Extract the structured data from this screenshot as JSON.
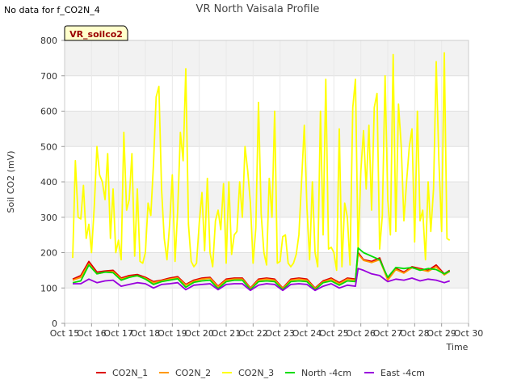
{
  "notice": "No data for f_CO2N_4",
  "chart_data": {
    "type": "line",
    "title": "VR North Vaisala Profile",
    "site_label": "VR_soilco2",
    "xlabel": "Time",
    "ylabel": "Soil CO2 (mV)",
    "ylim": [
      0,
      800
    ],
    "yticks": [
      0,
      100,
      200,
      300,
      400,
      500,
      600,
      700,
      800
    ],
    "xlim": [
      15,
      30
    ],
    "xticks": [
      15,
      16,
      17,
      18,
      19,
      20,
      21,
      22,
      23,
      24,
      25,
      26,
      27,
      28,
      29,
      30
    ],
    "xtick_labels": [
      "Oct 15",
      "Oct 16",
      "Oct 17",
      "Oct 18",
      "Oct 19",
      "Oct 20",
      "Oct 21",
      "Oct 22",
      "Oct 23",
      "Oct 24",
      "Oct 25",
      "Oct 26",
      "Oct 27",
      "Oct 28",
      "Oct 29",
      "Oct 30"
    ],
    "grid": true,
    "legend_position": "bottom",
    "series": [
      {
        "name": "CO2N_3",
        "color": "#ffff00",
        "x": [
          15.3,
          15.4,
          15.5,
          15.6,
          15.7,
          15.8,
          15.9,
          16.0,
          16.1,
          16.2,
          16.3,
          16.4,
          16.5,
          16.6,
          16.7,
          16.8,
          16.9,
          17.0,
          17.1,
          17.2,
          17.3,
          17.4,
          17.5,
          17.6,
          17.7,
          17.8,
          17.9,
          18.0,
          18.1,
          18.2,
          18.3,
          18.4,
          18.5,
          18.6,
          18.7,
          18.8,
          18.9,
          19.0,
          19.1,
          19.2,
          19.3,
          19.4,
          19.5,
          19.6,
          19.7,
          19.8,
          19.9,
          20.0,
          20.1,
          20.2,
          20.3,
          20.4,
          20.5,
          20.6,
          20.7,
          20.8,
          20.9,
          21.0,
          21.1,
          21.2,
          21.3,
          21.4,
          21.5,
          21.6,
          21.7,
          21.8,
          21.9,
          22.0,
          22.1,
          22.2,
          22.3,
          22.4,
          22.5,
          22.6,
          22.7,
          22.8,
          22.9,
          23.0,
          23.1,
          23.2,
          23.3,
          23.4,
          23.5,
          23.6,
          23.7,
          23.8,
          23.9,
          24.0,
          24.1,
          24.2,
          24.3,
          24.4,
          24.5,
          24.6,
          24.7,
          24.8,
          24.9,
          25.0,
          25.1,
          25.2,
          25.3,
          25.4,
          25.5,
          25.6,
          25.7,
          25.8,
          25.9,
          26.0,
          26.1,
          26.2,
          26.3,
          26.4,
          26.5,
          26.6,
          26.7,
          26.8,
          26.9,
          27.0,
          27.1,
          27.2,
          27.3,
          27.4,
          27.5,
          27.6,
          27.7,
          27.8,
          27.9,
          28.0,
          28.1,
          28.2,
          28.3,
          28.4,
          28.5,
          28.6,
          28.7,
          28.8,
          28.9,
          29.0,
          29.1,
          29.2,
          29.3
        ],
        "y": [
          185,
          460,
          300,
          295,
          390,
          240,
          280,
          200,
          330,
          500,
          420,
          400,
          350,
          480,
          240,
          380,
          200,
          235,
          180,
          540,
          320,
          350,
          480,
          190,
          380,
          175,
          170,
          200,
          340,
          305,
          450,
          640,
          670,
          380,
          240,
          180,
          280,
          420,
          175,
          320,
          540,
          460,
          720,
          280,
          175,
          160,
          170,
          285,
          370,
          205,
          410,
          200,
          160,
          290,
          320,
          265,
          395,
          170,
          400,
          195,
          250,
          260,
          400,
          300,
          500,
          430,
          340,
          170,
          270,
          625,
          310,
          200,
          165,
          410,
          300,
          600,
          170,
          175,
          245,
          250,
          170,
          160,
          170,
          195,
          250,
          400,
          560,
          325,
          180,
          400,
          200,
          160,
          600,
          250,
          690,
          210,
          215,
          200,
          150,
          550,
          160,
          340,
          300,
          165,
          610,
          690,
          200,
          430,
          545,
          380,
          560,
          320,
          610,
          650,
          210,
          305,
          700,
          350,
          250,
          760,
          260,
          620,
          500,
          290,
          400,
          500,
          550,
          230,
          600,
          290,
          320,
          180,
          400,
          260,
          380,
          740,
          460,
          260,
          765,
          240,
          235
        ]
      },
      {
        "name": "CO2N_1",
        "color": "#dd0000",
        "x": [
          15.3,
          15.6,
          15.9,
          16.2,
          16.5,
          16.8,
          17.1,
          17.4,
          17.7,
          18.0,
          18.3,
          18.6,
          18.9,
          19.2,
          19.5,
          19.8,
          20.1,
          20.4,
          20.7,
          21.0,
          21.3,
          21.6,
          21.9,
          22.2,
          22.5,
          22.8,
          23.1,
          23.4,
          23.7,
          24.0,
          24.3,
          24.6,
          24.9,
          25.2,
          25.5,
          25.8,
          25.9,
          26.1,
          26.4,
          26.7,
          27.0,
          27.3,
          27.6,
          27.9,
          28.2,
          28.5,
          28.8,
          29.1,
          29.3
        ],
        "y": [
          125,
          135,
          175,
          145,
          148,
          150,
          128,
          135,
          138,
          130,
          118,
          122,
          128,
          132,
          110,
          122,
          128,
          130,
          105,
          125,
          128,
          128,
          100,
          125,
          128,
          125,
          100,
          125,
          128,
          125,
          100,
          120,
          128,
          115,
          128,
          125,
          200,
          180,
          175,
          185,
          125,
          155,
          145,
          160,
          155,
          150,
          165,
          140,
          150
        ]
      },
      {
        "name": "CO2N_2",
        "color": "#ff9900",
        "x": [
          15.3,
          15.6,
          15.9,
          16.2,
          16.5,
          16.8,
          17.1,
          17.4,
          17.7,
          18.0,
          18.3,
          18.6,
          18.9,
          19.2,
          19.5,
          19.8,
          20.1,
          20.4,
          20.7,
          21.0,
          21.3,
          21.6,
          21.9,
          22.2,
          22.5,
          22.8,
          23.1,
          23.4,
          23.7,
          24.0,
          24.3,
          24.6,
          24.9,
          25.2,
          25.5,
          25.8,
          25.9,
          26.1,
          26.4,
          26.7,
          27.0,
          27.3,
          27.6,
          27.9,
          28.2,
          28.5,
          28.8,
          29.1,
          29.3
        ],
        "y": [
          122,
          130,
          168,
          140,
          145,
          146,
          125,
          132,
          134,
          127,
          115,
          120,
          125,
          129,
          108,
          119,
          125,
          127,
          103,
          122,
          125,
          125,
          98,
          122,
          125,
          122,
          98,
          122,
          125,
          122,
          98,
          117,
          125,
          112,
          125,
          122,
          196,
          178,
          172,
          180,
          122,
          152,
          142,
          157,
          152,
          147,
          160,
          137,
          147
        ]
      },
      {
        "name": "North -4cm",
        "color": "#00dd00",
        "x": [
          15.3,
          15.6,
          15.9,
          16.2,
          16.5,
          16.8,
          17.1,
          17.4,
          17.7,
          18.0,
          18.3,
          18.6,
          18.9,
          19.2,
          19.5,
          19.8,
          20.1,
          20.4,
          20.7,
          21.0,
          21.3,
          21.6,
          21.9,
          22.2,
          22.5,
          22.8,
          23.1,
          23.4,
          23.7,
          24.0,
          24.3,
          24.6,
          24.9,
          25.2,
          25.5,
          25.8,
          25.9,
          26.1,
          26.4,
          26.7,
          27.0,
          27.3,
          27.6,
          27.9,
          28.2,
          28.5,
          28.8,
          29.1,
          29.3
        ],
        "y": [
          115,
          120,
          165,
          140,
          145,
          143,
          122,
          130,
          135,
          125,
          110,
          118,
          122,
          126,
          102,
          116,
          120,
          122,
          98,
          118,
          122,
          122,
          95,
          118,
          120,
          118,
          95,
          118,
          120,
          118,
          95,
          115,
          120,
          108,
          120,
          118,
          213,
          200,
          190,
          180,
          130,
          158,
          155,
          158,
          150,
          155,
          152,
          140,
          148
        ]
      },
      {
        "name": "East -4cm",
        "color": "#9900dd",
        "x": [
          15.3,
          15.6,
          15.9,
          16.2,
          16.5,
          16.8,
          17.1,
          17.4,
          17.7,
          18.0,
          18.3,
          18.6,
          18.9,
          19.2,
          19.5,
          19.8,
          20.1,
          20.4,
          20.7,
          21.0,
          21.3,
          21.6,
          21.9,
          22.2,
          22.5,
          22.8,
          23.1,
          23.4,
          23.7,
          24.0,
          24.3,
          24.6,
          24.9,
          25.2,
          25.5,
          25.8,
          25.9,
          26.1,
          26.4,
          26.7,
          27.0,
          27.3,
          27.6,
          27.9,
          28.2,
          28.5,
          28.8,
          29.1,
          29.3
        ],
        "y": [
          112,
          112,
          125,
          115,
          120,
          122,
          105,
          110,
          115,
          112,
          100,
          110,
          112,
          115,
          95,
          108,
          110,
          112,
          95,
          110,
          112,
          112,
          93,
          108,
          112,
          110,
          93,
          110,
          112,
          110,
          93,
          105,
          112,
          100,
          108,
          105,
          155,
          150,
          140,
          135,
          118,
          125,
          122,
          128,
          120,
          125,
          122,
          115,
          120
        ]
      }
    ]
  }
}
